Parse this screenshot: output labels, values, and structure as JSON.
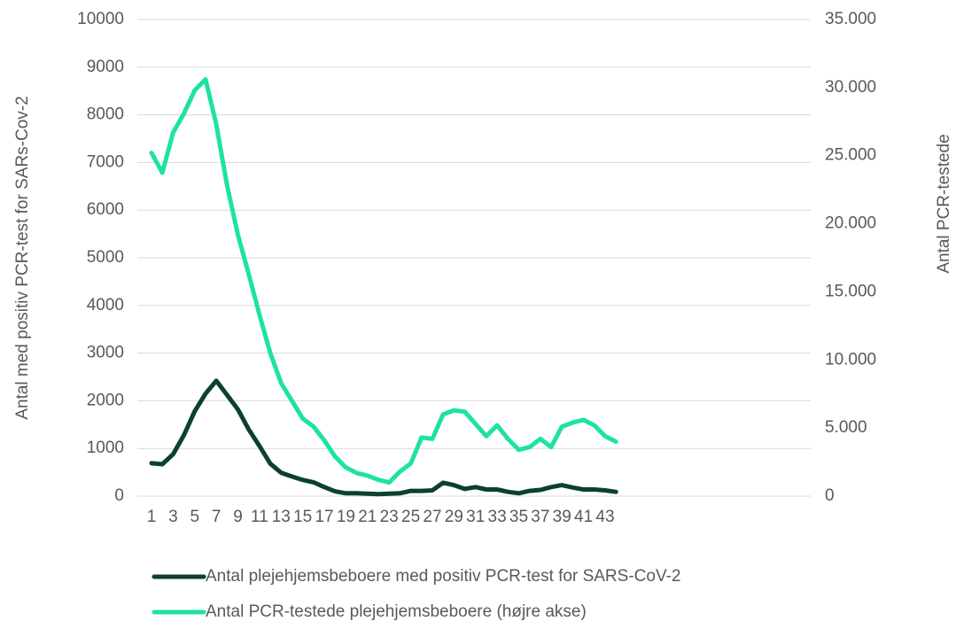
{
  "chart_data": {
    "type": "line",
    "y_label": "Antal med positiv PCR-test for SARs-Cov-2",
    "y2_label": "Antal PCR-testede",
    "categories": [
      1,
      null,
      3,
      null,
      5,
      null,
      7,
      null,
      9,
      null,
      11,
      null,
      13,
      null,
      15,
      null,
      17,
      null,
      19,
      null,
      21,
      null,
      23,
      null,
      25,
      null,
      27,
      null,
      29,
      null,
      31,
      null,
      33,
      null,
      35,
      null,
      37,
      null,
      39,
      null,
      41,
      null,
      43,
      null
    ],
    "series": [
      {
        "name": "Antal plejehjemsbeboere med positiv PCR-test for SARS-CoV-2",
        "color": "#0b4034",
        "axis": "y",
        "values": [
          690,
          670,
          880,
          1280,
          1780,
          2150,
          2420,
          2120,
          1820,
          1400,
          1050,
          680,
          490,
          410,
          340,
          290,
          190,
          100,
          60,
          60,
          50,
          40,
          50,
          60,
          110,
          110,
          120,
          280,
          230,
          150,
          190,
          140,
          140,
          90,
          60,
          110,
          130,
          190,
          230,
          180,
          140,
          140,
          120,
          90
        ]
      },
      {
        "name": "Antal PCR-testede plejehjemsbeboere (højre akse)",
        "color": "#1ee3a0",
        "axis": "y2",
        "values": [
          25200,
          23750,
          26700,
          28100,
          29800,
          30600,
          27300,
          22800,
          19200,
          16300,
          13300,
          10500,
          8300,
          7000,
          5700,
          5100,
          4100,
          2900,
          2100,
          1700,
          1500,
          1200,
          1000,
          1800,
          2400,
          4300,
          4200,
          6000,
          6300,
          6200,
          5300,
          4400,
          5200,
          4200,
          3400,
          3600,
          4200,
          3600,
          5100,
          5400,
          5600,
          5200,
          4400,
          4000
        ]
      }
    ],
    "ylim": [
      0,
      10000
    ],
    "yticks": [
      0,
      1000,
      2000,
      3000,
      4000,
      5000,
      6000,
      7000,
      8000,
      9000,
      10000
    ],
    "y2lim": [
      0,
      35000
    ],
    "y2ticks": [
      {
        "value": 0,
        "label": "0"
      },
      {
        "value": 5000,
        "label": "5.000"
      },
      {
        "value": 10000,
        "label": "10.000"
      },
      {
        "value": 15000,
        "label": "15.000"
      },
      {
        "value": 20000,
        "label": "20.000"
      },
      {
        "value": 25000,
        "label": "25.000"
      },
      {
        "value": 30000,
        "label": "30.000"
      },
      {
        "value": 35000,
        "label": "35.000"
      }
    ],
    "grid": true
  }
}
